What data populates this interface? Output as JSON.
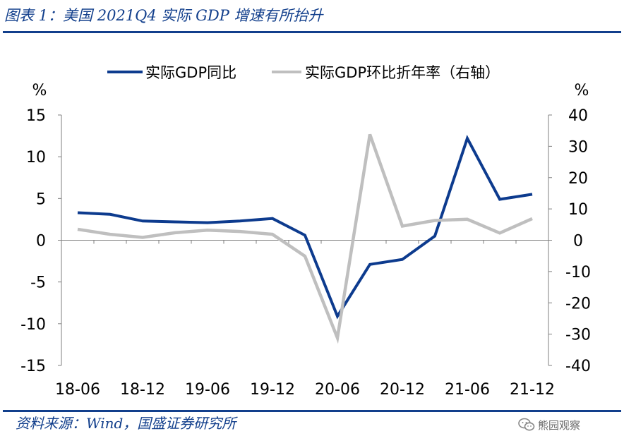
{
  "figure": {
    "title": "图表 1：美国 2021Q4 实际 GDP 增速有所抬升",
    "source": "资料来源：Wind，国盛证券研究所",
    "watermark": "熊园观察"
  },
  "colors": {
    "accent": "#123f8c",
    "series_yoy": "#0d3b8e",
    "series_qoq": "#bfbfbf",
    "axis": "#7f7f7f",
    "text": "#000000"
  },
  "chart_data": {
    "type": "line",
    "title": "",
    "xlabel": "",
    "ylabel_left": "%",
    "ylabel_right": "%",
    "legend_position": "top-center",
    "grid": false,
    "x": [
      "18-06",
      "18-09",
      "18-12",
      "19-03",
      "19-06",
      "19-09",
      "19-12",
      "20-03",
      "20-06",
      "20-09",
      "20-12",
      "21-03",
      "21-06",
      "21-09",
      "21-12"
    ],
    "x_tick_labels": [
      "18-06",
      "18-12",
      "19-06",
      "19-12",
      "20-06",
      "20-12",
      "21-06",
      "21-12"
    ],
    "y_left": {
      "range": [
        -15,
        15
      ],
      "ticks": [
        "-15",
        "-10",
        "-5",
        "0",
        "5",
        "10",
        "15"
      ]
    },
    "y_right": {
      "range": [
        -40,
        40
      ],
      "ticks": [
        "-40",
        "-30",
        "-20",
        "-10",
        "0",
        "10",
        "20",
        "30",
        "40"
      ]
    },
    "series": [
      {
        "name": "实际GDP同比",
        "axis": "left",
        "values": [
          3.3,
          3.1,
          2.3,
          2.2,
          2.1,
          2.3,
          2.6,
          0.6,
          -9.1,
          -2.9,
          -2.3,
          0.5,
          12.2,
          4.9,
          5.5
        ]
      },
      {
        "name": "实际GDP环比折年率（右轴）",
        "axis": "right",
        "values": [
          3.5,
          1.9,
          0.9,
          2.4,
          3.2,
          2.8,
          1.9,
          -5.1,
          -31.2,
          33.8,
          4.5,
          6.3,
          6.7,
          2.3,
          6.9
        ]
      }
    ]
  }
}
